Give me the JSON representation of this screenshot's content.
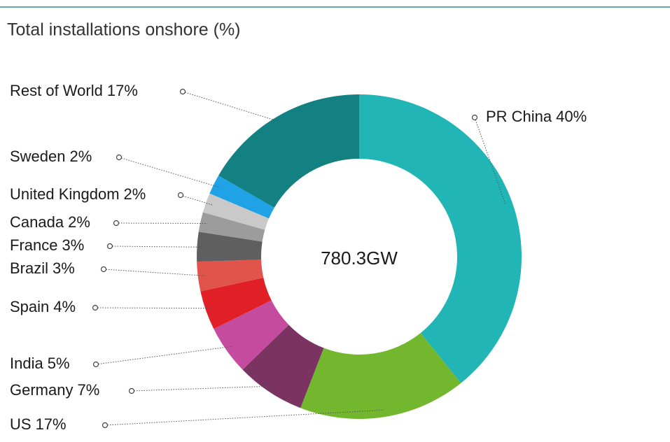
{
  "chart_data": {
    "type": "donut",
    "title": "Total installations onshore (%)",
    "center_label": "780.3GW",
    "categories": [
      "PR China",
      "US",
      "Germany",
      "India",
      "Spain",
      "Brazil",
      "France",
      "Canada",
      "United Kingdom",
      "Sweden",
      "Rest of World"
    ],
    "values": [
      40,
      17,
      7,
      5,
      4,
      3,
      3,
      2,
      2,
      2,
      17
    ],
    "value_labels": [
      "40%",
      "17%",
      "7%",
      "5%",
      "4%",
      "3%",
      "3%",
      "2%",
      "2%",
      "2%",
      "17%"
    ],
    "colors": [
      "#21b5b6",
      "#73b72f",
      "#7b3461",
      "#c54b9f",
      "#e11f27",
      "#e0544b",
      "#5f5f5f",
      "#9c9c9c",
      "#c9c9c9",
      "#1fa3e6",
      "#138181"
    ]
  }
}
